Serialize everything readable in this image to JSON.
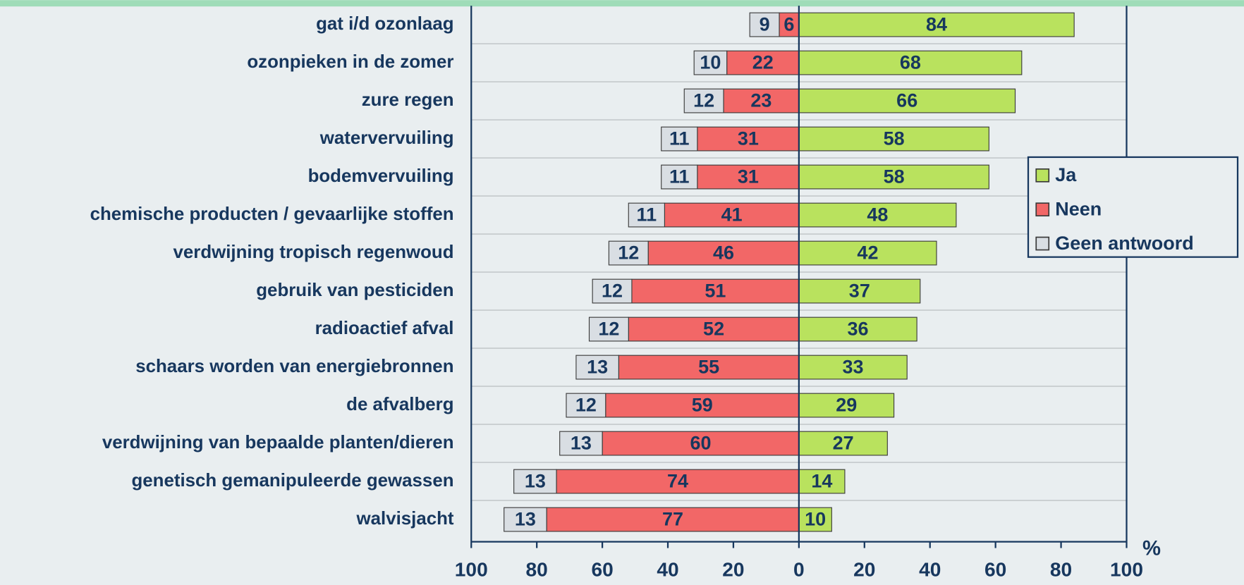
{
  "chart_data": {
    "type": "diverging-bar",
    "categories": [
      "gat i/d ozonlaag",
      "ozonpieken in de zomer",
      "zure regen",
      "watervervuiling",
      "bodemvervuiling",
      "chemische producten / gevaarlijke stoffen",
      "verdwijning tropisch regenwoud",
      "gebruik  van pesticiden",
      "radioactief afval",
      "schaars worden van energiebronnen",
      "de afvalberg",
      "verdwijning van bepaalde planten/dieren",
      "genetisch gemanipuleerde gewassen",
      "walvisjacht"
    ],
    "series": [
      {
        "name": "Ja",
        "color": "#b9e25e",
        "values": [
          84,
          68,
          66,
          58,
          58,
          48,
          42,
          37,
          36,
          33,
          29,
          27,
          14,
          10
        ]
      },
      {
        "name": "Neen",
        "color": "#f26767",
        "values": [
          -6,
          -22,
          -23,
          -31,
          -31,
          -41,
          -46,
          -51,
          -52,
          -55,
          -59,
          -60,
          -74,
          -77
        ],
        "value_labels": [
          "6",
          "22",
          "23",
          "31",
          "31",
          "41",
          "46",
          "51",
          "52",
          "55",
          "59",
          "60",
          "74",
          "77"
        ]
      },
      {
        "name": "Geen antwoord",
        "color": "#d9dee3",
        "values": [
          -9,
          -10,
          -12,
          -11,
          -11,
          -11,
          -12,
          -12,
          -12,
          -13,
          -12,
          -13,
          -13,
          -13
        ],
        "value_labels": [
          "9",
          "10",
          "12",
          "11",
          "11",
          "11",
          "12",
          "12",
          "12",
          "13",
          "12",
          "13",
          "13",
          "13"
        ]
      }
    ],
    "x_unit": "%",
    "xlim": [
      -100,
      100
    ],
    "xticks": [
      {
        "value": -100,
        "label": "100"
      },
      {
        "value": -80,
        "label": "80"
      },
      {
        "value": -60,
        "label": "60"
      },
      {
        "value": -40,
        "label": "40"
      },
      {
        "value": -20,
        "label": "20"
      },
      0,
      20,
      40,
      60,
      80,
      100
    ],
    "legend": "right"
  }
}
